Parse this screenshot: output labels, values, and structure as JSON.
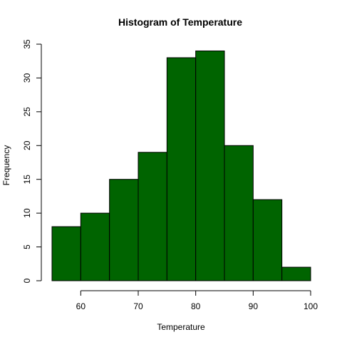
{
  "chart_data": {
    "type": "bar",
    "title": "Histogram of Temperature",
    "xlabel": "Temperature",
    "ylabel": "Frequency",
    "bin_edges": [
      55,
      60,
      65,
      70,
      75,
      80,
      85,
      90,
      95,
      100
    ],
    "values": [
      8,
      10,
      15,
      19,
      33,
      34,
      20,
      12,
      2
    ],
    "xlim": [
      55,
      100
    ],
    "ylim": [
      0,
      35
    ],
    "x_ticks": [
      60,
      70,
      80,
      90,
      100
    ],
    "y_ticks": [
      0,
      5,
      10,
      15,
      20,
      25,
      30,
      35
    ],
    "grid": false,
    "bar_color": "#006400"
  }
}
